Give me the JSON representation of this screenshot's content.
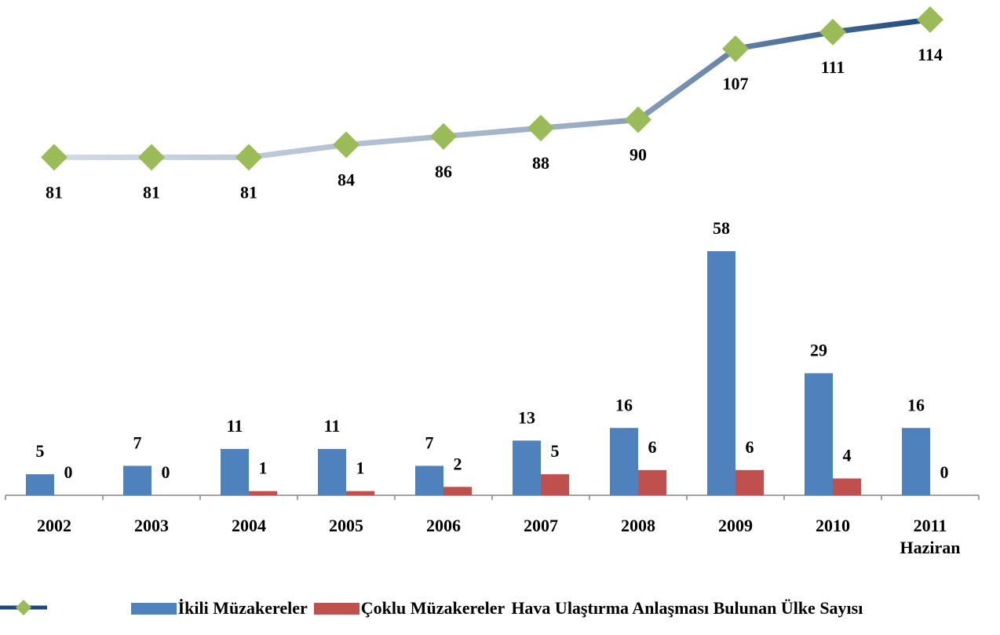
{
  "chart_data": {
    "type": "bar-line",
    "categories": [
      "2002",
      "2003",
      "2004",
      "2005",
      "2006",
      "2007",
      "2008",
      "2009",
      "2010",
      "2011\nHaziran"
    ],
    "series": [
      {
        "name": "İkili Müzakereler",
        "color": "#4f81bd",
        "type": "bar",
        "values": [
          5,
          7,
          11,
          11,
          7,
          13,
          16,
          58,
          29,
          16
        ]
      },
      {
        "name": "Çoklu Müzakereler",
        "color": "#c0504d",
        "type": "bar",
        "values": [
          0,
          0,
          1,
          1,
          2,
          5,
          6,
          6,
          4,
          0
        ]
      },
      {
        "name": "Hava Ulaştırma Anlaşması Bulunan Ülke Sayısı",
        "color": "#1f497d",
        "marker_color": "#9bbb59",
        "type": "line",
        "axis": "y2",
        "values": [
          81,
          81,
          81,
          84,
          86,
          88,
          90,
          107,
          111,
          114
        ]
      }
    ],
    "ylim": [
      0,
      116
    ],
    "y2lim": [
      0,
      117
    ],
    "grid": false
  }
}
